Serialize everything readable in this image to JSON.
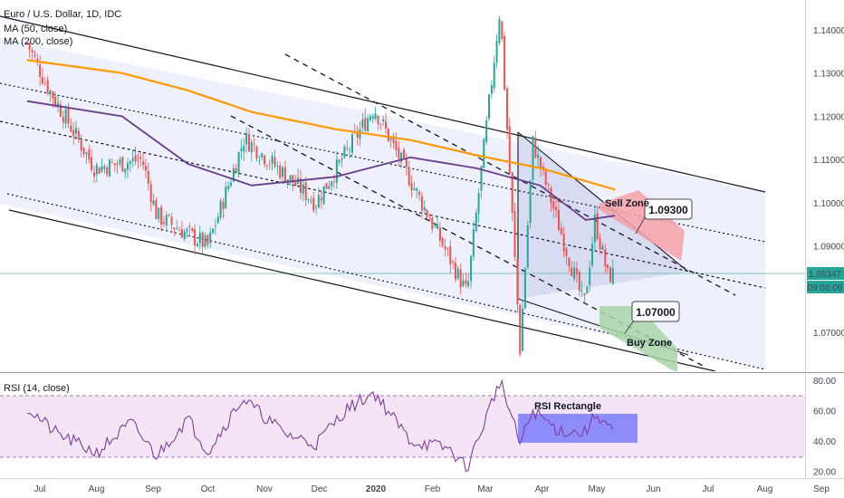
{
  "header": {
    "symbol": "Euro / U.S. Dollar, 1D, IDC",
    "ma50": "MA (50, close)",
    "ma200": "MA (200, close)"
  },
  "rsi_panel": {
    "label": "RSI (14, close)"
  },
  "annotations": {
    "sell_zone": "Sell Zone",
    "sell_level": "1.09300",
    "buy_zone": "Buy Zone",
    "buy_level": "1.07000",
    "rsi_rectangle": "RSI Rectangle"
  },
  "price_readout": {
    "price": "1.08347",
    "countdown": "09:06:09"
  },
  "colors": {
    "bull": "#26a69a",
    "bear": "#ef5350",
    "ma50": "#6a3d8f",
    "ma200": "#ff9800",
    "channel_fill": "#eef0fb",
    "sell_zone": "#f4a0a8",
    "buy_zone": "#a8d5a8",
    "rsi_line": "#7e3f98",
    "rsi_band": "#f3e5f5",
    "rsi_rect": "#7b7bfa",
    "price_line": "#26a69a"
  },
  "chart_data": [
    {
      "type": "candlestick",
      "symbol": "EURUSD",
      "interval": "1D",
      "x_tick_labels": [
        "Jul",
        "Aug",
        "Sep",
        "Oct",
        "Nov",
        "Dec",
        "2020",
        "Feb",
        "Mar",
        "Apr",
        "May",
        "Jun",
        "Jul",
        "Aug",
        "Sep"
      ],
      "y_tick_labels": [
        "1.14000",
        "1.13000",
        "1.12000",
        "1.11000",
        "1.10000",
        "1.09000",
        "1.07000"
      ],
      "ylim": [
        1.0625,
        1.1475
      ],
      "ohlc_anchors": [
        {
          "date": "2019-06-24",
          "close": 1.137
        },
        {
          "date": "2019-07-05",
          "close": 1.127
        },
        {
          "date": "2019-07-31",
          "close": 1.108
        },
        {
          "date": "2019-08-26",
          "close": 1.11
        },
        {
          "date": "2019-09-03",
          "close": 1.097
        },
        {
          "date": "2019-10-01",
          "close": 1.09
        },
        {
          "date": "2019-10-21",
          "close": 1.115
        },
        {
          "date": "2019-11-29",
          "close": 1.1
        },
        {
          "date": "2019-12-31",
          "close": 1.122
        },
        {
          "date": "2020-02-20",
          "close": 1.079
        },
        {
          "date": "2020-03-09",
          "close": 1.145
        },
        {
          "date": "2020-03-20",
          "close": 1.066
        },
        {
          "date": "2020-03-27",
          "close": 1.114
        },
        {
          "date": "2020-04-24",
          "close": 1.076
        },
        {
          "date": "2020-04-30",
          "close": 1.096
        },
        {
          "date": "2020-05-07",
          "close": 1.083
        },
        {
          "date": "2020-05-11",
          "close": 1.0835
        }
      ],
      "last_price": 1.08347,
      "moving_averages": [
        {
          "name": "MA (50, close)",
          "color": "#6a3d8f",
          "points": [
            [
              "2019-06-24",
              1.1235
            ],
            [
              "2019-08-15",
              1.12
            ],
            [
              "2019-09-20",
              1.109
            ],
            [
              "2019-10-25",
              1.104
            ],
            [
              "2019-12-10",
              1.106
            ],
            [
              "2020-01-20",
              1.1105
            ],
            [
              "2020-02-25",
              1.108
            ],
            [
              "2020-03-31",
              1.104
            ],
            [
              "2020-04-25",
              1.096
            ],
            [
              "2020-05-11",
              1.097
            ]
          ]
        },
        {
          "name": "MA (200, close)",
          "color": "#ff9800",
          "points": [
            [
              "2019-06-24",
              1.133
            ],
            [
              "2019-08-15",
              1.13
            ],
            [
              "2019-09-20",
              1.126
            ],
            [
              "2019-10-25",
              1.121
            ],
            [
              "2019-12-10",
              1.117
            ],
            [
              "2020-01-20",
              1.1145
            ],
            [
              "2020-02-25",
              1.111
            ],
            [
              "2020-03-31",
              1.108
            ],
            [
              "2020-04-25",
              1.105
            ],
            [
              "2020-05-11",
              1.103
            ]
          ]
        }
      ]
    },
    {
      "type": "line",
      "name": "RSI (14, close)",
      "y_tick_labels": [
        "80.00",
        "60.00",
        "40.00",
        "20.00"
      ],
      "ylim": [
        18,
        82
      ],
      "bands": [
        30,
        70
      ],
      "points": [
        [
          "2019-06-24",
          62
        ],
        [
          "2019-07-10",
          45
        ],
        [
          "2019-08-01",
          32
        ],
        [
          "2019-08-20",
          52
        ],
        [
          "2019-09-03",
          30
        ],
        [
          "2019-09-20",
          55
        ],
        [
          "2019-10-01",
          33
        ],
        [
          "2019-10-20",
          68
        ],
        [
          "2019-11-12",
          45
        ],
        [
          "2019-11-29",
          38
        ],
        [
          "2019-12-15",
          60
        ],
        [
          "2019-12-31",
          72
        ],
        [
          "2020-01-20",
          40
        ],
        [
          "2020-02-10",
          35
        ],
        [
          "2020-02-20",
          22
        ],
        [
          "2020-03-09",
          80
        ],
        [
          "2020-03-20",
          38
        ],
        [
          "2020-03-27",
          60
        ],
        [
          "2020-04-10",
          47
        ],
        [
          "2020-04-24",
          45
        ],
        [
          "2020-05-01",
          58
        ],
        [
          "2020-05-11",
          45
        ]
      ]
    }
  ]
}
